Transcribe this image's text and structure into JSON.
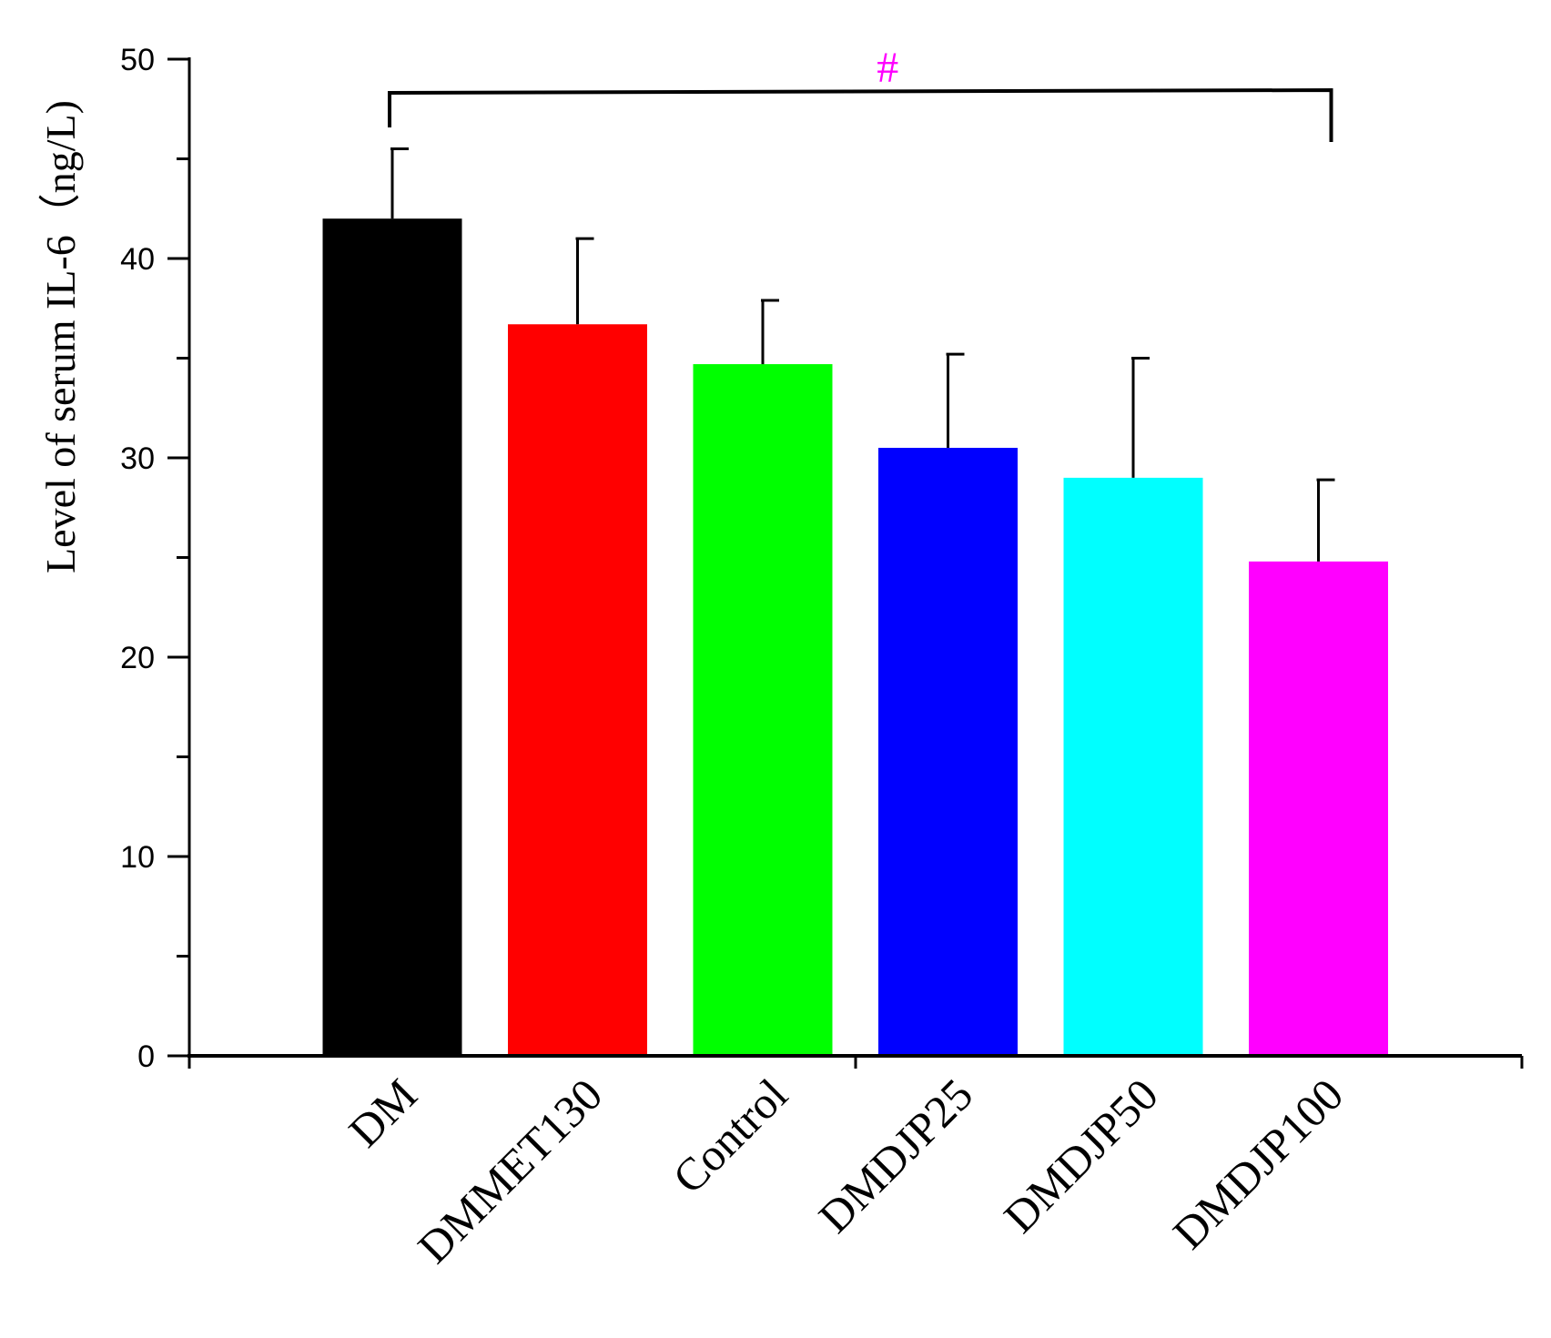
{
  "chart_data": {
    "type": "bar",
    "title": "",
    "xlabel": "",
    "ylabel": "Level of serum IL-6（ng/L)",
    "ylim": [
      0,
      50
    ],
    "yticks": [
      0,
      10,
      20,
      30,
      40,
      50
    ],
    "grid": false,
    "categories": [
      "DM",
      "DMMET130",
      "Control",
      "DMDJP25",
      "DMDJP50",
      "DMDJP100"
    ],
    "values": [
      42.0,
      36.7,
      34.7,
      30.5,
      29.0,
      24.8
    ],
    "error_upper": [
      3.5,
      4.3,
      3.2,
      4.7,
      6.0,
      4.1
    ],
    "colors": [
      "#000000",
      "#ff0000",
      "#00ff00",
      "#0000ff",
      "#00ffff",
      "#ff00ff"
    ],
    "annotation": {
      "text": "#",
      "color": "#ff00ff",
      "from_category": "DM",
      "to_category": "DMDJP100"
    }
  }
}
